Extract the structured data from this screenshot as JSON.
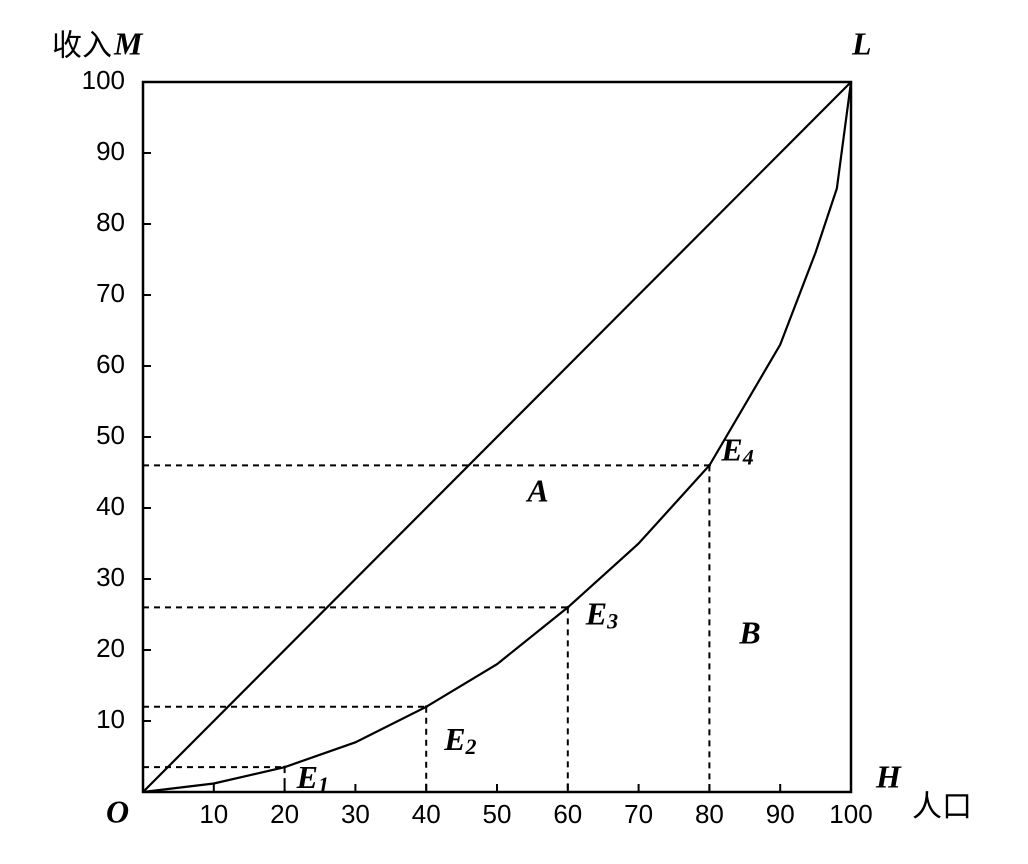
{
  "chart_data": {
    "type": "line",
    "y_label": "收入",
    "y_var": "M",
    "x_label": "人口",
    "x_var": "H",
    "origin_label": "O",
    "corner_label": "L",
    "xlim": [
      0,
      100
    ],
    "ylim": [
      0,
      100
    ],
    "xticks": [
      10,
      20,
      30,
      40,
      50,
      60,
      70,
      80,
      90,
      100
    ],
    "yticks": [
      10,
      20,
      30,
      40,
      50,
      60,
      70,
      80,
      90,
      100
    ],
    "series": [
      {
        "x": [
          0,
          100
        ],
        "values": [
          0,
          100
        ],
        "color": "#000000"
      },
      {
        "x": [
          0,
          10,
          20,
          30,
          40,
          50,
          60,
          70,
          80,
          90,
          95,
          98,
          100
        ],
        "values": [
          0,
          1.2,
          3.5,
          7,
          12,
          18,
          26,
          35,
          46,
          63,
          76,
          85,
          100
        ],
        "color": "#000000"
      }
    ],
    "points": [
      {
        "letter": "E",
        "sub": "1",
        "x": 20,
        "y": 3.5
      },
      {
        "letter": "E",
        "sub": "2",
        "x": 40,
        "y": 12
      },
      {
        "letter": "E",
        "sub": "3",
        "x": 60,
        "y": 26
      },
      {
        "letter": "E",
        "sub": "4",
        "x": 80,
        "y": 46
      }
    ],
    "regions": [
      "A",
      "B"
    ]
  }
}
